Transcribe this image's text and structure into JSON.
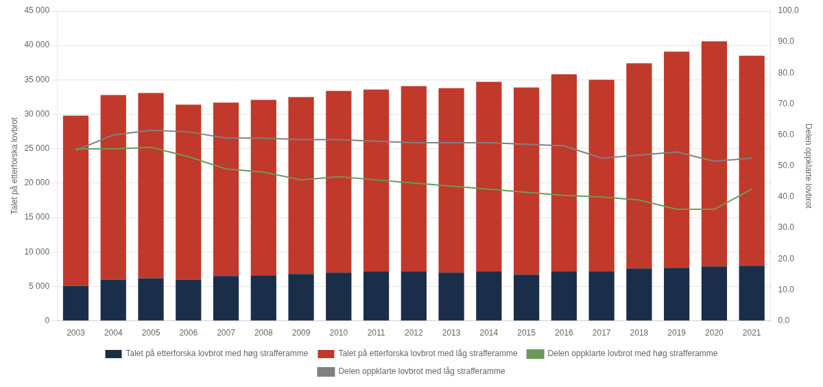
{
  "chart_data": {
    "type": "bar",
    "stacked": true,
    "categories": [
      "2003",
      "2004",
      "2005",
      "2006",
      "2007",
      "2008",
      "2009",
      "2010",
      "2011",
      "2012",
      "2013",
      "2014",
      "2015",
      "2016",
      "2017",
      "2018",
      "2019",
      "2020",
      "2021"
    ],
    "series": [
      {
        "name": "Talet på etterforska lovbrot med høg strafferamme",
        "type": "bar",
        "color": "#1a2e4a",
        "values": [
          5100,
          6000,
          6200,
          6000,
          6500,
          6600,
          6800,
          7000,
          7200,
          7200,
          7000,
          7200,
          6700,
          7200,
          7200,
          7600,
          7700,
          7900,
          8000
        ]
      },
      {
        "name": "Talet på etterforska lovbrot med låg strafferamme",
        "type": "bar",
        "color": "#c0392b",
        "values": [
          24700,
          26800,
          26900,
          25400,
          25200,
          25500,
          25700,
          26400,
          26400,
          26900,
          26800,
          27500,
          27200,
          28600,
          27800,
          29800,
          31400,
          32700,
          30500
        ]
      },
      {
        "name": "Delen oppklarte lovbrot med høg strafferamme",
        "type": "line",
        "axis": "y2",
        "color": "#6a9a5a",
        "values": [
          55.5,
          55.5,
          56.0,
          53.0,
          49.0,
          48.0,
          45.5,
          46.5,
          45.5,
          44.5,
          43.5,
          42.5,
          41.5,
          40.5,
          40.0,
          39.0,
          36.0,
          36.0,
          42.5
        ]
      },
      {
        "name": "Delen oppklarte lovbrot med låg strafferamme",
        "type": "line",
        "axis": "y2",
        "color": "#808080",
        "values": [
          55.0,
          60.0,
          61.5,
          61.0,
          59.0,
          59.0,
          58.5,
          58.5,
          58.0,
          57.5,
          57.5,
          57.5,
          57.0,
          56.5,
          52.5,
          53.5,
          54.5,
          51.5,
          52.5
        ]
      }
    ],
    "ylabel": "Talet på etterforska lovbrot",
    "y2label": "Delen oppklarte lovbrot",
    "ylim": [
      0,
      45000
    ],
    "yticks": [
      0,
      {
        "value": 5000,
        "label": "5 000"
      },
      {
        "value": 10000,
        "label": "10 000"
      },
      {
        "value": 15000,
        "label": "15 000"
      },
      {
        "value": 20000,
        "label": "20 000"
      },
      {
        "value": 25000,
        "label": "25 000"
      },
      {
        "value": 30000,
        "label": "30 000"
      },
      {
        "value": 35000,
        "label": "35 000"
      },
      {
        "value": 40000,
        "label": "40 000"
      },
      {
        "value": 45000,
        "label": "45 000"
      }
    ],
    "y2lim": [
      0.0,
      100.0
    ],
    "y2ticks": [
      {
        "value": 0,
        "label": "0.0"
      },
      {
        "value": 10,
        "label": "10.0"
      },
      {
        "value": 20,
        "label": "20.0"
      },
      {
        "value": 30,
        "label": "30.0"
      },
      {
        "value": 40,
        "label": "40.0"
      },
      {
        "value": 50,
        "label": "50.0"
      },
      {
        "value": 60,
        "label": "60.0"
      },
      {
        "value": 70,
        "label": "70.0"
      },
      {
        "value": 80,
        "label": "80.0"
      },
      {
        "value": 90,
        "label": "90.0"
      },
      {
        "value": 100,
        "label": "100.0"
      }
    ],
    "grid": true,
    "legend": "bottom"
  }
}
